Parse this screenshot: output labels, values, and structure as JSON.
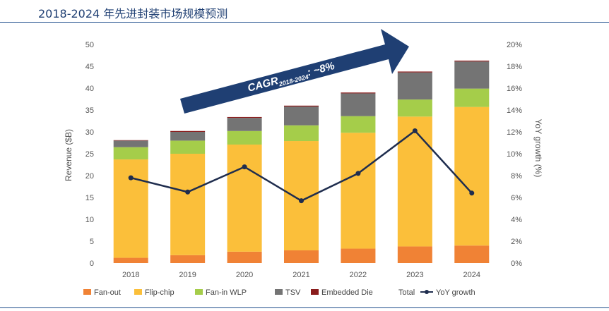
{
  "page_title": "2018-2024 年先进封装市场规模预测",
  "chart_data": {
    "type": "bar",
    "stacked": true,
    "categories": [
      "2018",
      "2019",
      "2020",
      "2021",
      "2022",
      "2023",
      "2024"
    ],
    "series": [
      {
        "name": "Fan-out",
        "color": "#f08235",
        "values": [
          1.2,
          1.8,
          2.6,
          2.9,
          3.3,
          3.8,
          4.0
        ]
      },
      {
        "name": "Flip-chip",
        "color": "#fbbf3a",
        "values": [
          22.5,
          23.2,
          24.5,
          25.0,
          26.5,
          29.7,
          31.7
        ]
      },
      {
        "name": "Fan-in WLP",
        "color": "#a5cd4a",
        "values": [
          2.8,
          3.0,
          3.1,
          3.6,
          3.8,
          3.9,
          4.2
        ]
      },
      {
        "name": "TSV",
        "color": "#747474",
        "values": [
          1.5,
          2.0,
          3.0,
          4.3,
          5.2,
          6.2,
          6.2
        ]
      },
      {
        "name": "Embedded Die",
        "color": "#8a1c1c",
        "values": [
          0.1,
          0.2,
          0.2,
          0.2,
          0.2,
          0.2,
          0.2
        ]
      }
    ],
    "extra_legend": [
      "Total"
    ],
    "line_series": {
      "name": "YoY growth",
      "color": "#1f2d4e",
      "values": [
        7.8,
        6.5,
        8.8,
        5.7,
        8.2,
        12.1,
        6.4
      ]
    },
    "ylabel": "Revenue ($B)",
    "ylabel_right": "YoY growth (%)",
    "ylim": [
      0,
      50
    ],
    "yticks": [
      "0",
      "5",
      "10",
      "15",
      "20",
      "25",
      "30",
      "35",
      "40",
      "45",
      "50"
    ],
    "ylim_right": [
      0,
      20
    ],
    "yticks_right": [
      "0%",
      "2%",
      "4%",
      "6%",
      "8%",
      "10%",
      "12%",
      "14%",
      "16%",
      "18%",
      "20%"
    ],
    "annotation": {
      "main": "CAGR",
      "sub": "2018-2024",
      "suffix": ": ~8%",
      "color": "#1f3f73"
    },
    "grid": false,
    "legend_position": "bottom"
  }
}
